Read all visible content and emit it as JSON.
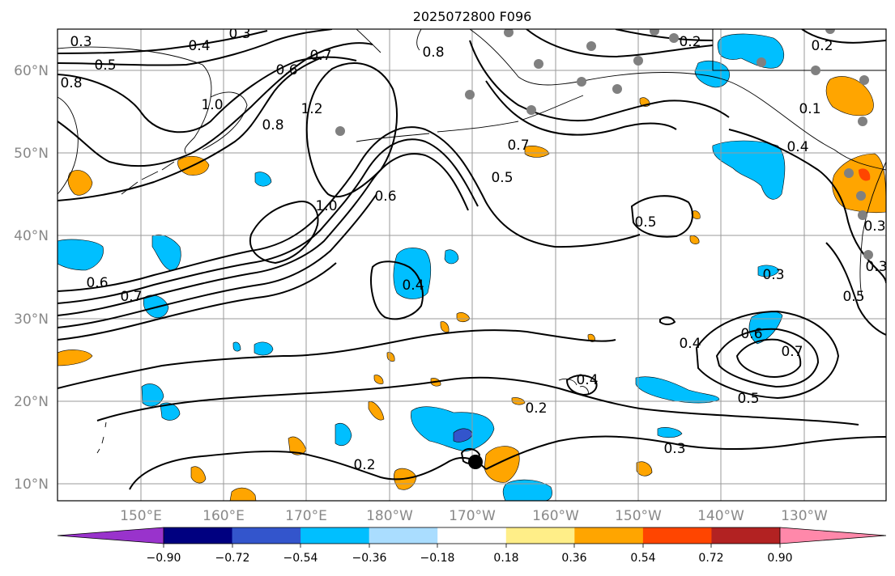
{
  "title": "2025072800 F096",
  "map": {
    "lat_labels": [
      "10°N",
      "20°N",
      "30°N",
      "40°N",
      "50°N",
      "60°N"
    ],
    "lon_labels": [
      "150°E",
      "160°E",
      "170°E",
      "180°W",
      "170°W",
      "160°W",
      "150°W",
      "140°W",
      "130°W"
    ],
    "contour_labels": [
      "0.3",
      "0.4",
      "0.3",
      "0.5",
      "0.8",
      "0.6",
      "0.7",
      "0.8",
      "1.0",
      "1.2",
      "0.8",
      "1.0",
      "0.6",
      "0.7",
      "0.5",
      "0.2",
      "0.2",
      "0.4",
      "0.5",
      "0.3",
      "0.6",
      "0.7",
      "0.4",
      "0.4",
      "0.6",
      "0.7",
      "0.5",
      "0.5",
      "0.3",
      "0.2",
      "0.2",
      "0.3",
      "0.4",
      "0.3",
      "0.1"
    ],
    "colors": {
      "strong_neg": "#9933cc",
      "neg_090": "#000080",
      "neg_072": "#3355cc",
      "neg_054": "#00bfff",
      "neg_036": "#00bfff",
      "neg_018": "#aaddff",
      "pos_018": "#ffee88",
      "pos_036": "#ffa500",
      "pos_054": "#ff4500",
      "pos_072": "#b22222",
      "pos_090": "#ff88aa"
    }
  },
  "colorbar": {
    "ticks": [
      "−0.90",
      "−0.72",
      "−0.54",
      "−0.36",
      "−0.18",
      "0.18",
      "0.36",
      "0.54",
      "0.72",
      "0.90"
    ],
    "segment_colors": [
      "#9933cc",
      "#000080",
      "#3355cc",
      "#00bfff",
      "#aaddff",
      "#ffffff",
      "#ffee88",
      "#ffa500",
      "#ff4500",
      "#b22222",
      "#ff88aa"
    ]
  }
}
